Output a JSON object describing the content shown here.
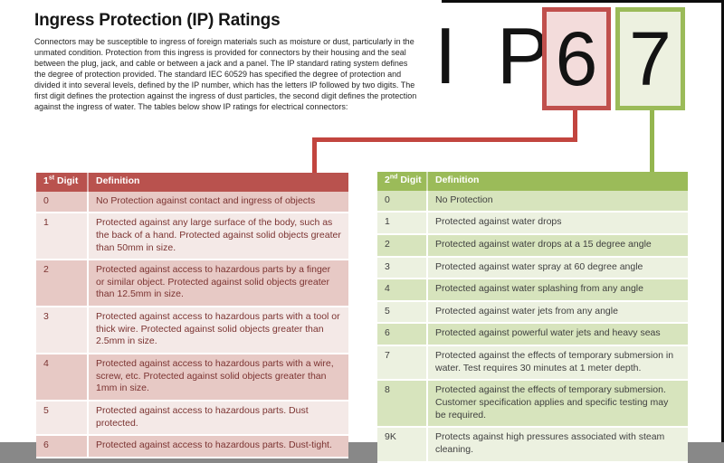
{
  "page": {
    "title": "Ingress Protection (IP) Ratings",
    "intro": "Connectors may be susceptible to ingress of foreign materials such as moisture or dust, particularly in the unmated condition.  Protection from this ingress is provided for connectors by their housing and the seal between the plug, jack, and cable or between a jack and a panel. The IP standard rating system defines the degree of protection provided. The standard IEC 60529 has specified the degree of protection and divided it into several levels, defined by the IP number, which has the letters IP followed by two digits.  The first digit defines the protection against the ingress of dust particles, the second digit defines the protection against the ingress of water. The tables below show IP ratings for electrical connectors:"
  },
  "ip_graphic": {
    "letters": "I P",
    "first_digit": "6",
    "second_digit": "7"
  },
  "colors": {
    "red_accent": "#c0504d",
    "red_header": "#b9524e",
    "red_row_dark": "#e7c9c5",
    "red_row_light": "#f4e9e7",
    "red_text": "#7b3331",
    "red_box_fill": "#f3dcdb",
    "green_accent": "#9bbb59",
    "green_header": "#9bbb59",
    "green_row_dark": "#d7e4bd",
    "green_row_light": "#ecf1e0",
    "green_box_fill": "#edf1e0",
    "body_text": "#3f3f3f"
  },
  "first_digit_table": {
    "header": {
      "digit_num": "1",
      "digit_sup": "st",
      "digit_word": "Digit",
      "definition": "Definition"
    },
    "rows": [
      {
        "digit": "0",
        "definition": "No Protection against contact and ingress of objects"
      },
      {
        "digit": "1",
        "definition": "Protected against any large surface of the body, such as the back of a hand.  Protected against solid objects greater than 50mm in size."
      },
      {
        "digit": "2",
        "definition": "Protected against access to hazardous parts by a finger or similar object.  Protected against solid objects greater than 12.5mm in size."
      },
      {
        "digit": "3",
        "definition": "Protected against access to hazardous parts with a tool or thick wire.  Protected against solid objects greater than 2.5mm in size."
      },
      {
        "digit": "4",
        "definition": "Protected against access to hazardous parts with a wire, screw, etc.  Protected against solid objects greater than 1mm in size."
      },
      {
        "digit": "5",
        "definition": "Protected against access to hazardous parts.  Dust protected."
      },
      {
        "digit": "6",
        "definition": "Protected against access to hazardous parts.  Dust-tight."
      }
    ]
  },
  "second_digit_table": {
    "header": {
      "digit_num": "2",
      "digit_sup": "nd",
      "digit_word": "Digit",
      "definition": "Definition"
    },
    "rows": [
      {
        "digit": "0",
        "definition": "No Protection"
      },
      {
        "digit": "1",
        "definition": "Protected against water drops"
      },
      {
        "digit": "2",
        "definition": "Protected against water drops at a 15 degree angle"
      },
      {
        "digit": "3",
        "definition": "Protected against water spray at 60 degree angle"
      },
      {
        "digit": "4",
        "definition": "Protected against water splashing from any angle"
      },
      {
        "digit": "5",
        "definition": "Protected against water jets from any angle"
      },
      {
        "digit": "6",
        "definition": "Protected against powerful water jets and heavy seas"
      },
      {
        "digit": "7",
        "definition": "Protected against the effects of temporary submersion in water.  Test requires 30 minutes at 1 meter depth."
      },
      {
        "digit": "8",
        "definition": "Protected against the effects of temporary submersion. Customer specification applies and specific testing may be required."
      },
      {
        "digit": "9K",
        "definition": "Protects against high pressures associated with steam cleaning."
      }
    ]
  }
}
